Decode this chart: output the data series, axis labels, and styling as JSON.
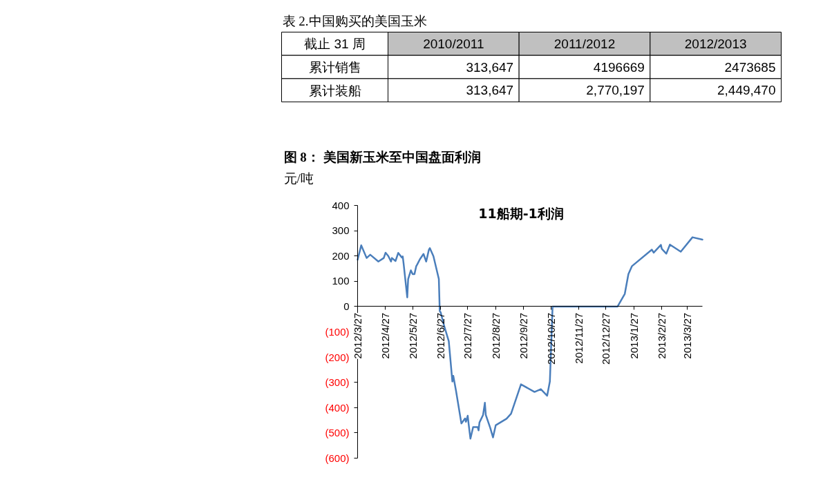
{
  "chart_data": [
    {
      "type": "other",
      "title": "表 2.中国购买的美国玉米",
      "annotations": [
        "截止 31 周"
      ],
      "categories": [
        "2010/2011",
        "2011/2012",
        "2012/2013"
      ],
      "y_categories": [
        "累计销售",
        "累计装船"
      ],
      "cell_labels": [
        [
          "313,647",
          "4196669",
          "2473685"
        ],
        [
          "313,647",
          "2,770,197",
          "2,449,470"
        ]
      ]
    },
    {
      "type": "line",
      "title": "图 8： 美国新玉米至中国盘面利润",
      "subtitle": "11船期-1利润",
      "ylabel": "元/吨",
      "color": "#4a7ebb",
      "x": [
        "2012-03-27",
        "2012-03-31",
        "2012-04-06",
        "2012-04-10",
        "2012-04-19",
        "2012-04-25",
        "2012-04-27",
        "2012-04-30",
        "2012-05-03",
        "2012-05-04",
        "2012-05-08",
        "2012-05-11",
        "2012-05-15",
        "2012-05-16",
        "2012-05-17",
        "2012-05-21",
        "2012-05-22",
        "2012-05-25",
        "2012-05-27",
        "2012-05-29",
        "2012-05-31",
        "2012-06-01",
        "2012-06-04",
        "2012-06-08",
        "2012-06-11",
        "2012-06-14",
        "2012-06-15",
        "2012-06-19",
        "2012-06-25",
        "2012-06-26",
        "2012-06-27",
        "2012-07-01",
        "2012-07-06",
        "2012-07-10",
        "2012-07-11",
        "2012-07-14",
        "2012-07-20",
        "2012-07-24",
        "2012-07-25",
        "2012-07-27",
        "2012-07-28",
        "2012-07-30",
        "2012-08-02",
        "2012-08-07",
        "2012-08-08",
        "2012-08-09",
        "2012-08-13",
        "2012-08-15",
        "2012-08-16",
        "2012-08-21",
        "2012-08-24",
        "2012-08-27",
        "2012-09-08",
        "2012-09-13",
        "2012-09-24",
        "2012-10-09",
        "2012-10-16",
        "2012-10-23",
        "2012-10-26",
        "2012-10-29",
        "2013-01-09",
        "2013-01-17",
        "2013-01-21",
        "2013-01-25",
        "2013-02-16",
        "2013-02-18",
        "2013-02-26",
        "2013-02-27",
        "2013-03-04",
        "2013-03-08",
        "2013-03-20",
        "2013-04-02",
        "2013-04-13"
      ],
      "values": [
        185,
        242,
        192,
        205,
        178,
        192,
        213,
        200,
        178,
        192,
        180,
        212,
        194,
        198,
        169,
        36,
        109,
        143,
        128,
        128,
        160,
        166,
        187,
        208,
        178,
        225,
        231,
        199,
        109,
        -18,
        -23,
        -78,
        -137,
        -297,
        -274,
        -333,
        -463,
        -443,
        -456,
        -432,
        -465,
        -523,
        -477,
        -477,
        -490,
        -459,
        -429,
        -381,
        -429,
        -481,
        -518,
        -470,
        -444,
        -424,
        -308,
        -338,
        -327,
        -353,
        -297,
        0,
        0,
        50,
        128,
        160,
        225,
        213,
        244,
        228,
        209,
        245,
        217,
        274,
        265
      ],
      "xlim": [
        "2012-03-27",
        "2013-04-13"
      ],
      "xticks": [
        {
          "value": "2012-03-27",
          "label": "2012/3/27"
        },
        {
          "value": "2012-04-27",
          "label": "2012/4/27"
        },
        {
          "value": "2012-05-27",
          "label": "2012/5/27"
        },
        {
          "value": "2012-06-27",
          "label": "2012/6/27"
        },
        {
          "value": "2012-07-27",
          "label": "2012/7/27"
        },
        {
          "value": "2012-08-27",
          "label": "2012/8/27"
        },
        {
          "value": "2012-09-27",
          "label": "2012/9/27"
        },
        {
          "value": "2012-10-27",
          "label": "2012/10/27"
        },
        {
          "value": "2012-11-27",
          "label": "2012/11/27"
        },
        {
          "value": "2012-12-27",
          "label": "2012/12/27"
        },
        {
          "value": "2013-01-27",
          "label": "2013/1/27"
        },
        {
          "value": "2013-02-27",
          "label": "2013/2/27"
        },
        {
          "value": "2013-03-27",
          "label": "2013/3/27"
        }
      ],
      "ylim": [
        -600,
        400
      ],
      "yticks": [
        {
          "value": -600,
          "label": "(600)"
        },
        {
          "value": -500,
          "label": "(500)"
        },
        {
          "value": -400,
          "label": "(400)"
        },
        {
          "value": -300,
          "label": "(300)"
        },
        {
          "value": -200,
          "label": "(200)"
        },
        {
          "value": -100,
          "label": "(100)"
        },
        0,
        100,
        200,
        300,
        400
      ]
    }
  ]
}
